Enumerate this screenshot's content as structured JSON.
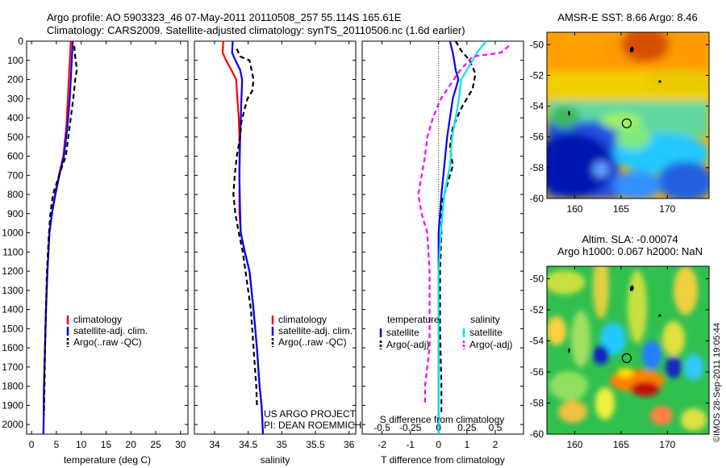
{
  "header": {
    "line1": "Argo profile: AO 5903323_46 07-May-2011 20110508_257 55.114S 165.61E",
    "line2": "Climatology: CARS2009. Satellite-adjusted climatology: synTS_20110506.nc (1.6d earlier)"
  },
  "credit": "©IMOS 28-Sep-2011 19:05:44",
  "project": {
    "line1": "US ARGO PROJECT",
    "line2": "PI: DEAN ROEMMICH"
  },
  "colors": {
    "red": "#ff0000",
    "blue": "#0000ff",
    "black": "#000000",
    "cyan": "#00e5ee",
    "magenta": "#ff00ff"
  },
  "depth_axis": {
    "range": [
      0,
      2050
    ],
    "ticks": [
      0,
      100,
      200,
      300,
      400,
      500,
      600,
      700,
      800,
      900,
      1000,
      1100,
      1200,
      1300,
      1400,
      1500,
      1600,
      1700,
      1800,
      1900,
      2000
    ]
  },
  "chart_data": [
    {
      "type": "line",
      "name": "temperature-profile",
      "xlabel": "temperature (deg C)",
      "xlim": [
        -1,
        31.5
      ],
      "xticks": [
        0,
        5,
        10,
        15,
        20,
        25,
        30
      ],
      "ylim": [
        2050,
        0
      ],
      "legend": {
        "placement": "bottom-center",
        "entries": [
          "climatology",
          "satellite-adj. clim.",
          "Argo(..raw -QC)"
        ]
      },
      "series": [
        {
          "name": "climatology",
          "color": "#ff0000",
          "dash": false,
          "points": [
            [
              7.9,
              0
            ],
            [
              7.8,
              50
            ],
            [
              7.6,
              150
            ],
            [
              7.3,
              300
            ],
            [
              7.0,
              450
            ],
            [
              6.4,
              600
            ],
            [
              5.5,
              700
            ],
            [
              4.7,
              800
            ],
            [
              4.1,
              900
            ],
            [
              3.6,
              1000
            ],
            [
              3.2,
              1200
            ],
            [
              2.9,
              1400
            ],
            [
              2.7,
              1600
            ],
            [
              2.5,
              1800
            ],
            [
              2.4,
              2050
            ]
          ]
        },
        {
          "name": "satellite-adj. clim.",
          "color": "#0000ff",
          "dash": false,
          "points": [
            [
              8.3,
              0
            ],
            [
              8.2,
              50
            ],
            [
              8.0,
              150
            ],
            [
              7.7,
              300
            ],
            [
              7.2,
              450
            ],
            [
              6.5,
              600
            ],
            [
              5.6,
              700
            ],
            [
              4.8,
              800
            ],
            [
              4.1,
              900
            ],
            [
              3.6,
              1000
            ],
            [
              3.2,
              1200
            ],
            [
              2.9,
              1400
            ],
            [
              2.7,
              1600
            ],
            [
              2.5,
              1800
            ],
            [
              2.4,
              2050
            ]
          ]
        },
        {
          "name": "Argo(..raw -QC)",
          "color": "#000000",
          "dash": true,
          "points": [
            [
              8.6,
              25
            ],
            [
              8.7,
              60
            ],
            [
              8.9,
              100
            ],
            [
              9.1,
              150
            ],
            [
              8.8,
              200
            ],
            [
              8.4,
              300
            ],
            [
              7.9,
              400
            ],
            [
              7.4,
              500
            ],
            [
              6.9,
              600
            ],
            [
              6.2,
              650
            ],
            [
              5.3,
              720
            ],
            [
              4.3,
              800
            ],
            [
              3.8,
              900
            ],
            [
              3.5,
              1000
            ],
            [
              3.1,
              1200
            ],
            [
              2.9,
              1400
            ],
            [
              2.7,
              1600
            ],
            [
              2.6,
              1800
            ],
            [
              2.5,
              1950
            ]
          ]
        }
      ]
    },
    {
      "type": "line",
      "name": "salinity-profile",
      "xlabel": "salinity",
      "xlim": [
        33.7,
        36.1
      ],
      "xticks": [
        34,
        34.5,
        35,
        35.5,
        36
      ],
      "ylim": [
        2050,
        0
      ],
      "legend": {
        "placement": "bottom-center",
        "entries": [
          "climatology",
          "satellite-adj. clim.",
          "Argo(..raw -QC)"
        ]
      },
      "series": [
        {
          "name": "climatology",
          "color": "#ff0000",
          "dash": false,
          "points": [
            [
              34.13,
              0
            ],
            [
              34.12,
              60
            ],
            [
              34.17,
              100
            ],
            [
              34.25,
              150
            ],
            [
              34.32,
              200
            ],
            [
              34.34,
              300
            ],
            [
              34.36,
              400
            ],
            [
              34.37,
              500
            ],
            [
              34.37,
              700
            ],
            [
              34.37,
              900
            ],
            [
              34.39,
              1000
            ],
            [
              34.45,
              1100
            ],
            [
              34.52,
              1200
            ],
            [
              34.58,
              1400
            ],
            [
              34.63,
              1600
            ],
            [
              34.67,
              1800
            ],
            [
              34.7,
              1900
            ],
            [
              34.72,
              2050
            ]
          ]
        },
        {
          "name": "satellite-adj. clim.",
          "color": "#0000ff",
          "dash": false,
          "points": [
            [
              34.27,
              0
            ],
            [
              34.26,
              60
            ],
            [
              34.31,
              100
            ],
            [
              34.38,
              150
            ],
            [
              34.41,
              200
            ],
            [
              34.4,
              300
            ],
            [
              34.39,
              400
            ],
            [
              34.38,
              500
            ],
            [
              34.37,
              700
            ],
            [
              34.38,
              900
            ],
            [
              34.39,
              1000
            ],
            [
              34.45,
              1100
            ],
            [
              34.52,
              1200
            ],
            [
              34.58,
              1400
            ],
            [
              34.63,
              1600
            ],
            [
              34.67,
              1800
            ],
            [
              34.7,
              1900
            ],
            [
              34.72,
              2050
            ]
          ]
        },
        {
          "name": "Argo(..raw -QC)",
          "color": "#000000",
          "dash": true,
          "points": [
            [
              34.33,
              40
            ],
            [
              34.38,
              80
            ],
            [
              34.52,
              100
            ],
            [
              34.55,
              150
            ],
            [
              34.58,
              200
            ],
            [
              34.56,
              260
            ],
            [
              34.49,
              300
            ],
            [
              34.45,
              350
            ],
            [
              34.4,
              420
            ],
            [
              34.38,
              500
            ],
            [
              34.33,
              600
            ],
            [
              34.3,
              700
            ],
            [
              34.28,
              800
            ],
            [
              34.31,
              900
            ],
            [
              34.36,
              1000
            ],
            [
              34.42,
              1100
            ],
            [
              34.46,
              1200
            ],
            [
              34.54,
              1400
            ],
            [
              34.58,
              1600
            ],
            [
              34.62,
              1800
            ],
            [
              34.63,
              1900
            ]
          ]
        }
      ]
    },
    {
      "type": "line",
      "name": "difference-profile",
      "xlabel": "T difference from climatology",
      "xlabel_top": "S difference from climatology",
      "xlim": [
        -2.7,
        3.0
      ],
      "xticks": [
        -2,
        -1,
        0,
        1,
        2
      ],
      "xticks_top": [
        -0.5,
        -0.25,
        0,
        0.25,
        0.5
      ],
      "ylim": [
        2050,
        0
      ],
      "legend": {
        "placement": "bottom",
        "titles": [
          "temperature",
          "salinity"
        ],
        "entries": [
          "satellite",
          "Argo(-adj)",
          "satellite",
          "Argo(-adj)"
        ]
      },
      "series": [
        {
          "name": "temperature satellite",
          "color": "#0000ff",
          "dash": false,
          "points": [
            [
              0.4,
              0
            ],
            [
              0.5,
              60
            ],
            [
              0.55,
              100
            ],
            [
              0.6,
              150
            ],
            [
              0.7,
              200
            ],
            [
              0.5,
              300
            ],
            [
              0.3,
              500
            ],
            [
              0.2,
              650
            ],
            [
              0.1,
              800
            ],
            [
              0.05,
              900
            ],
            [
              0,
              1000
            ],
            [
              0,
              2050
            ]
          ]
        },
        {
          "name": "temperature Argo(-adj)",
          "color": "#000000",
          "dash": true,
          "points": [
            [
              0.6,
              0
            ],
            [
              0.8,
              50
            ],
            [
              1.1,
              100
            ],
            [
              1.3,
              170
            ],
            [
              1.2,
              250
            ],
            [
              0.8,
              350
            ],
            [
              0.5,
              450
            ],
            [
              0.4,
              550
            ],
            [
              0.5,
              650
            ],
            [
              0.3,
              750
            ],
            [
              0.1,
              850
            ],
            [
              0.1,
              1000
            ],
            [
              0.05,
              1200
            ],
            [
              0.05,
              1500
            ],
            [
              0.1,
              1800
            ],
            [
              0.1,
              1950
            ]
          ]
        },
        {
          "name": "salinity satellite",
          "color": "#00e5ee",
          "dash": false,
          "points": [
            [
              0.42,
              0
            ],
            [
              0.35,
              50
            ],
            [
              0.3,
              100
            ],
            [
              0.25,
              150
            ],
            [
              0.2,
              200
            ],
            [
              0.18,
              300
            ],
            [
              0.15,
              400
            ],
            [
              0.12,
              500
            ],
            [
              0.1,
              650
            ],
            [
              0.05,
              800
            ],
            [
              0.02,
              1000
            ],
            [
              0,
              1200
            ],
            [
              0,
              2050
            ]
          ]
        },
        {
          "name": "salinity Argo(-adj)",
          "color": "#ff00ff",
          "dash": true,
          "points": [
            [
              0.62,
              25
            ],
            [
              0.55,
              60
            ],
            [
              0.3,
              80
            ],
            [
              0.18,
              160
            ],
            [
              0.1,
              230
            ],
            [
              0.02,
              300
            ],
            [
              -0.05,
              400
            ],
            [
              -0.1,
              500
            ],
            [
              -0.12,
              600
            ],
            [
              -0.15,
              700
            ],
            [
              -0.18,
              800
            ],
            [
              -0.15,
              900
            ],
            [
              -0.1,
              1000
            ],
            [
              -0.08,
              1200
            ],
            [
              -0.08,
              1400
            ],
            [
              -0.08,
              1600
            ],
            [
              -0.12,
              1800
            ],
            [
              -0.12,
              1900
            ]
          ]
        }
      ]
    },
    {
      "type": "heatmap",
      "name": "sst-map",
      "title": "AMSR-E SST: 8.66 Argo: 8.46",
      "xlim": [
        157,
        174.5
      ],
      "ylim": [
        -60,
        -49.2
      ],
      "xticks": [
        160,
        165,
        170
      ],
      "yticks": [
        -50,
        -52,
        -54,
        -56,
        -58,
        -60
      ],
      "marker": {
        "lon": 165.61,
        "lat": -55.114
      }
    },
    {
      "type": "heatmap",
      "name": "sla-map",
      "title": "Altim. SLA: -0.00074",
      "subtitle": "Argo h1000: 0.067 h2000: NaN",
      "xlim": [
        157,
        174.5
      ],
      "ylim": [
        -60,
        -49.2
      ],
      "xticks": [
        160,
        165,
        170
      ],
      "yticks": [
        -50,
        -52,
        -54,
        -56,
        -58,
        -60
      ],
      "marker": {
        "lon": 165.61,
        "lat": -55.114
      }
    }
  ]
}
